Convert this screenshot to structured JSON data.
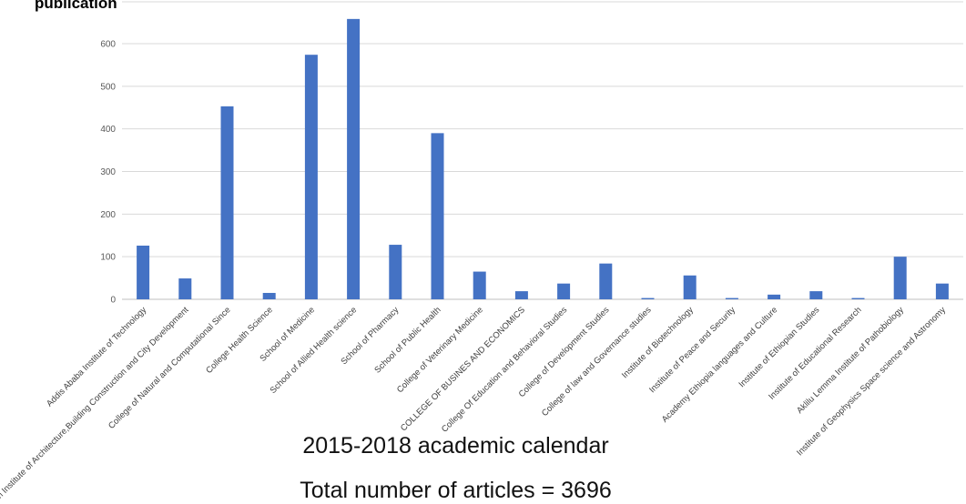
{
  "title": "publication",
  "caption_period": "2015-2018 academic calendar",
  "caption_total": "Total number of articles = 3696",
  "colors": {
    "bar": "#4472c4",
    "grid": "#d9d9d9",
    "axis": "#bfbfbf"
  },
  "chart_data": {
    "type": "bar",
    "title": "publication",
    "xlabel": "",
    "ylabel": "",
    "ylim": [
      0,
      700
    ],
    "yticks": [
      0,
      100,
      200,
      300,
      400,
      500,
      600
    ],
    "grid": true,
    "categories": [
      "Addis Ababa Institute of Technology",
      "Ethiopian Institute of Architecture,Building Construction and City Development",
      "College of Natural and Computational Since",
      "College Health Science",
      "School of Medicine",
      "School of Allied Health science",
      "School of Pharmacy",
      "School of Public Health",
      "College of Veterinary Medicine",
      "COLLEGE OF BUSINES AND ECONOMICS",
      "College Of Education and  Behavioral Studies",
      "College of Development Studies",
      "College of law and Governance studies",
      "Institute of Biotechnology",
      "Institute of Peace and Security",
      "Academy Ethiopia languages and Culture",
      "Institute of Ethiopian Studies",
      "Institute of Educational Research",
      "Aklilu Lemma Institute of Pathobiology",
      "Institute of Geophysics Space science and Astronomy"
    ],
    "values": [
      126,
      49,
      453,
      15,
      574,
      658,
      128,
      390,
      65,
      19,
      37,
      84,
      3,
      56,
      3,
      11,
      19,
      3,
      100,
      37
    ]
  }
}
